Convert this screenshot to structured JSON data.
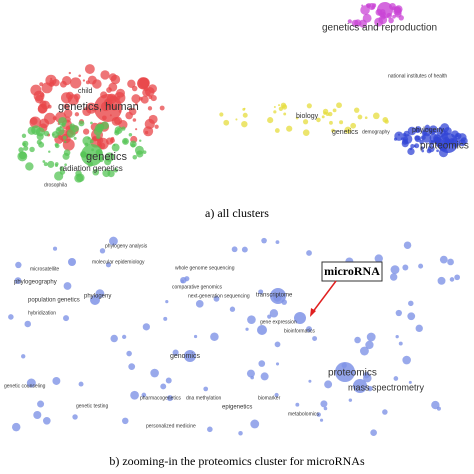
{
  "panel_a": {
    "caption": "a) all clusters",
    "labels": [
      "genetics and reproduction",
      "national institutes of health",
      "child",
      "genetics, human",
      "genetics",
      "radiation genetics",
      "drosophila",
      "biology",
      "genetics",
      "demography",
      "phylogeny",
      "proteomics"
    ]
  },
  "panel_b": {
    "caption": "b) zooming-in the proteomics cluster for microRNAs",
    "callout": "microRNA",
    "labels": [
      "phylogeny analysis",
      "molecular epidemiology",
      "whole genome sequencing",
      "microsatellite",
      "phylogeography",
      "phylogeny",
      "comparative genomics",
      "next-generation sequencing",
      "population genetics",
      "hybridization",
      "transcriptome",
      "gene expression",
      "bioinformatics",
      "genetic counseling",
      "genomics",
      "pharmacogenetics",
      "dna methylation",
      "genetic testing",
      "epigenetics",
      "personalized medicine",
      "biomarker",
      "metabolomics",
      "proteomics",
      "mass spectrometry"
    ]
  }
}
